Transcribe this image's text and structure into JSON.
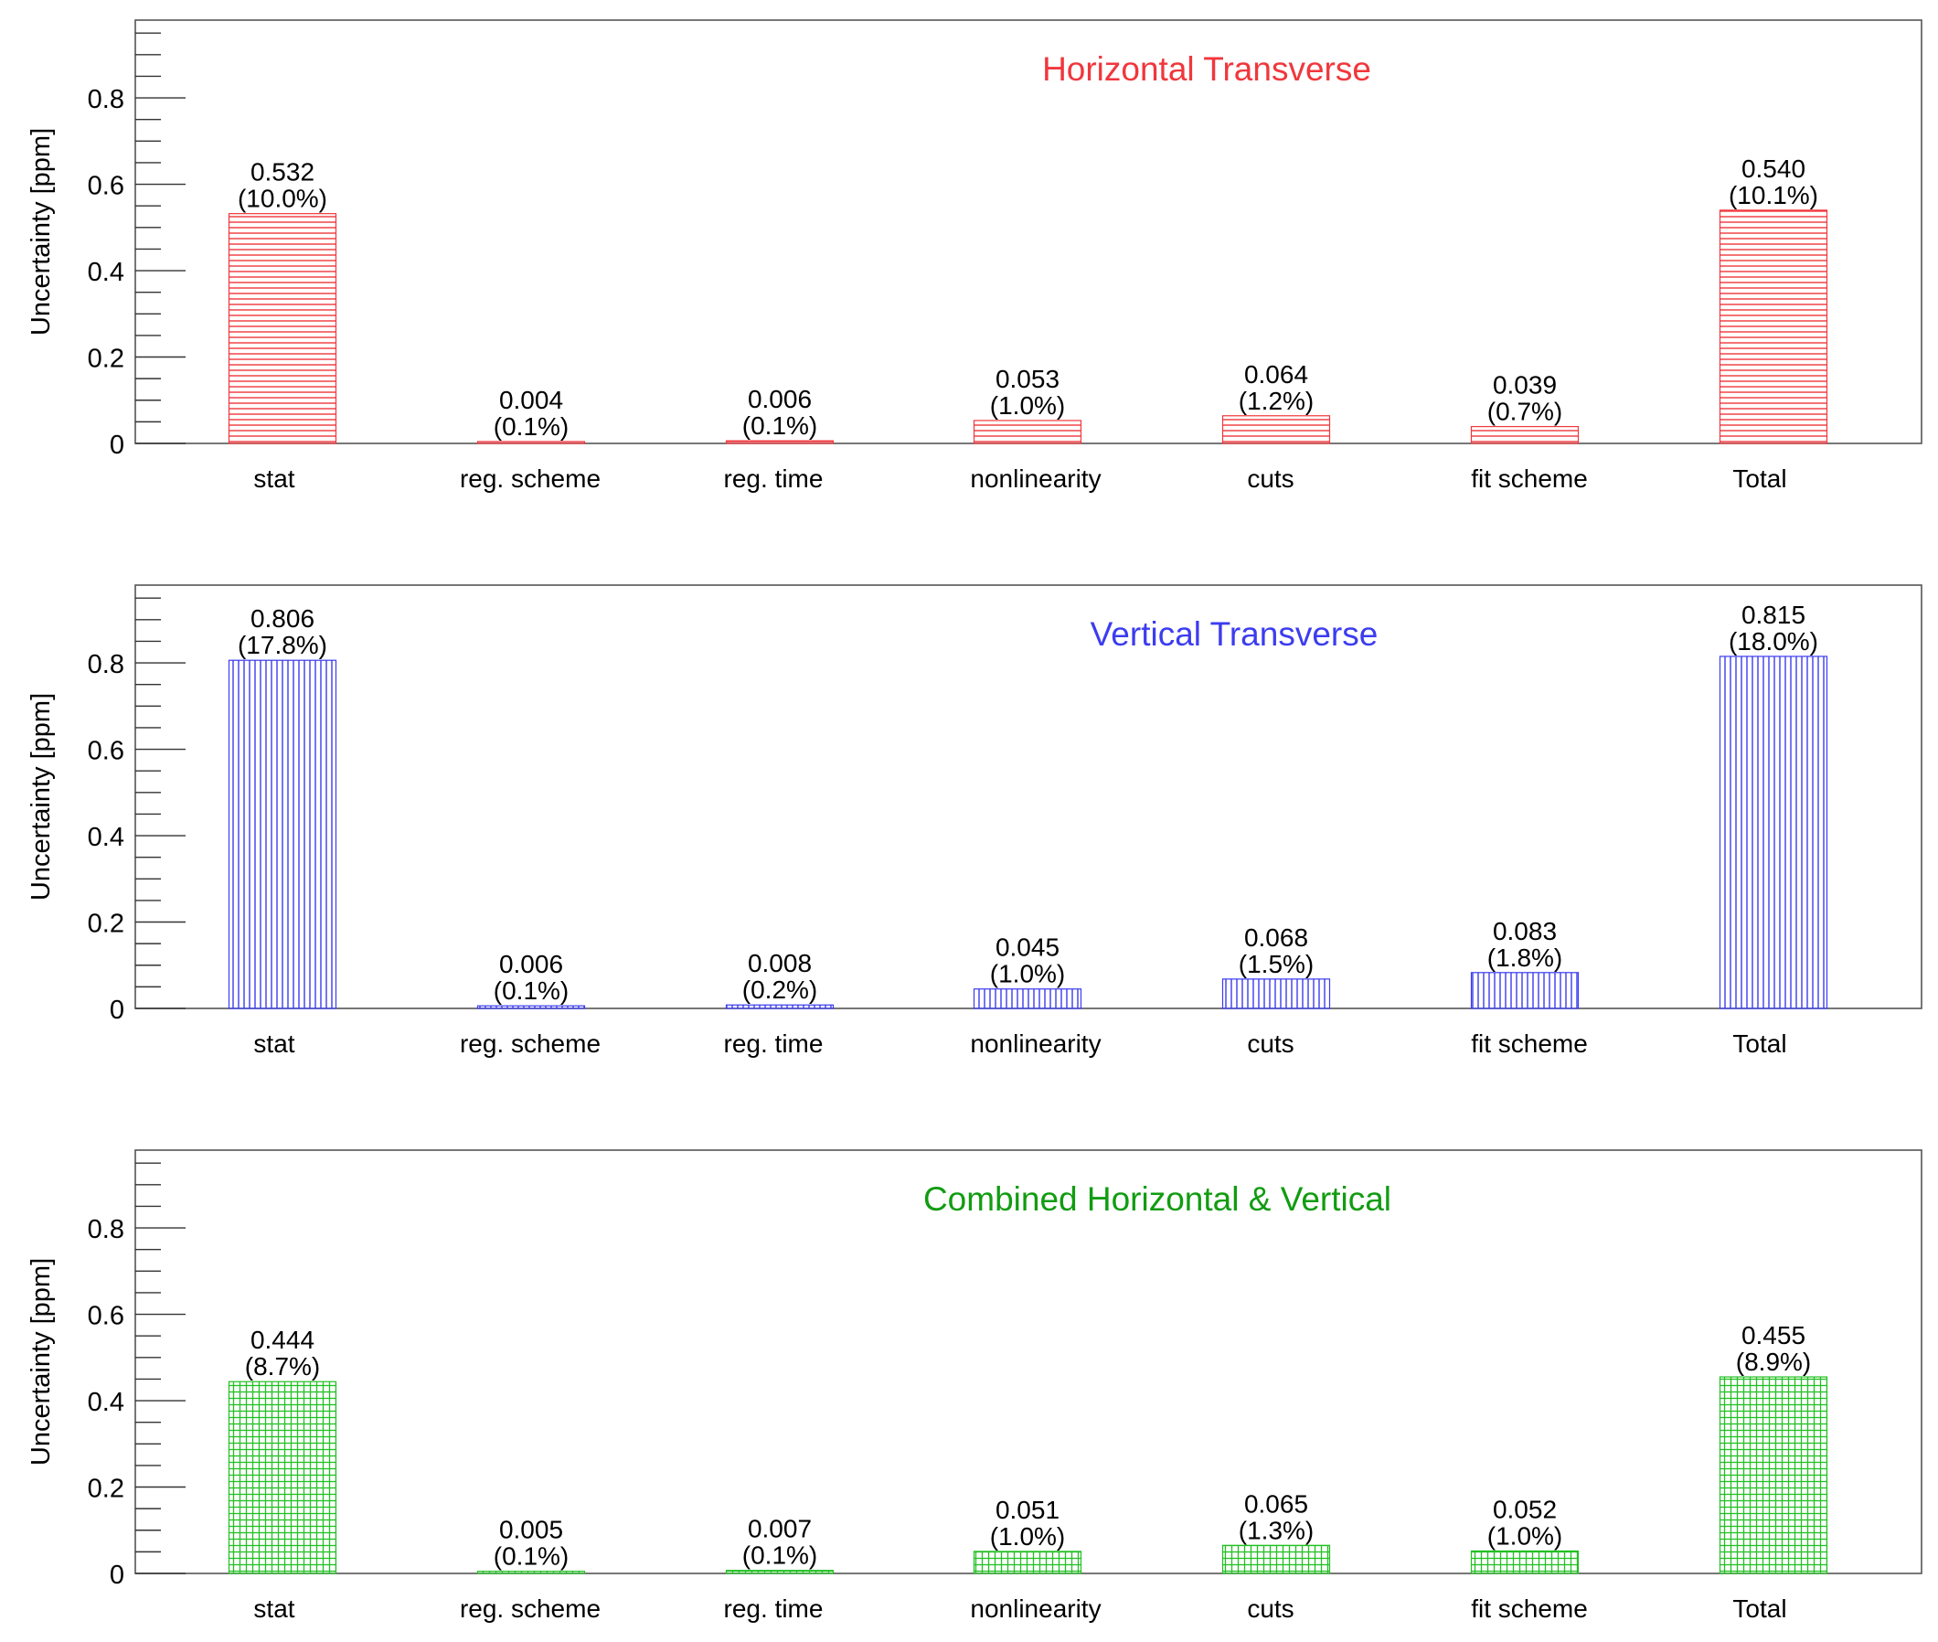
{
  "chart_data": [
    {
      "type": "bar",
      "title": "Horizontal Transverse",
      "title_color": "#f0373c",
      "bar_color": "#f0373c",
      "fill_pattern": "horizontal-hatch",
      "ylabel": "Uncertainty [ppm]",
      "ylim": [
        0,
        0.98
      ],
      "yticks": [
        "0",
        "0.2",
        "0.4",
        "0.6",
        "0.8"
      ],
      "categories": [
        "stat",
        "reg. scheme",
        "reg. time",
        "nonlinearity",
        "cuts",
        "fit scheme",
        "Total"
      ],
      "values": [
        0.532,
        0.004,
        0.006,
        0.053,
        0.064,
        0.039,
        0.54
      ],
      "value_labels": [
        "0.532",
        "0.004",
        "0.006",
        "0.053",
        "0.064",
        "0.039",
        "0.540"
      ],
      "percent_labels": [
        "(10.0%)",
        "(0.1%)",
        "(0.1%)",
        "(1.0%)",
        "(1.2%)",
        "(0.7%)",
        "(10.1%)"
      ],
      "grid": false
    },
    {
      "type": "bar",
      "title": "Vertical Transverse",
      "title_color": "#3c3cf0",
      "bar_color": "#3c3cf0",
      "fill_pattern": "vertical-hatch",
      "ylabel": "Uncertainty [ppm]",
      "ylim": [
        0,
        0.98
      ],
      "yticks": [
        "0",
        "0.2",
        "0.4",
        "0.6",
        "0.8"
      ],
      "categories": [
        "stat",
        "reg. scheme",
        "reg. time",
        "nonlinearity",
        "cuts",
        "fit scheme",
        "Total"
      ],
      "values": [
        0.806,
        0.006,
        0.008,
        0.045,
        0.068,
        0.083,
        0.815
      ],
      "value_labels": [
        "0.806",
        "0.006",
        "0.008",
        "0.045",
        "0.068",
        "0.083",
        "0.815"
      ],
      "percent_labels": [
        "(17.8%)",
        "(0.1%)",
        "(0.2%)",
        "(1.0%)",
        "(1.5%)",
        "(1.8%)",
        "(18.0%)"
      ],
      "grid": false
    },
    {
      "type": "bar",
      "title": "Combined Horizontal & Vertical",
      "title_color": "#119c11",
      "bar_color": "#22c022",
      "fill_pattern": "grid-hatch",
      "ylabel": "Uncertainty [ppm]",
      "ylim": [
        0,
        0.98
      ],
      "yticks": [
        "0",
        "0.2",
        "0.4",
        "0.6",
        "0.8"
      ],
      "categories": [
        "stat",
        "reg. scheme",
        "reg. time",
        "nonlinearity",
        "cuts",
        "fit scheme",
        "Total"
      ],
      "values": [
        0.444,
        0.005,
        0.007,
        0.051,
        0.065,
        0.052,
        0.455
      ],
      "value_labels": [
        "0.444",
        "0.005",
        "0.007",
        "0.051",
        "0.065",
        "0.052",
        "0.455"
      ],
      "percent_labels": [
        "(8.7%)",
        "(0.1%)",
        "(0.1%)",
        "(1.0%)",
        "(1.3%)",
        "(1.0%)",
        "(8.9%)"
      ],
      "grid": false
    }
  ]
}
